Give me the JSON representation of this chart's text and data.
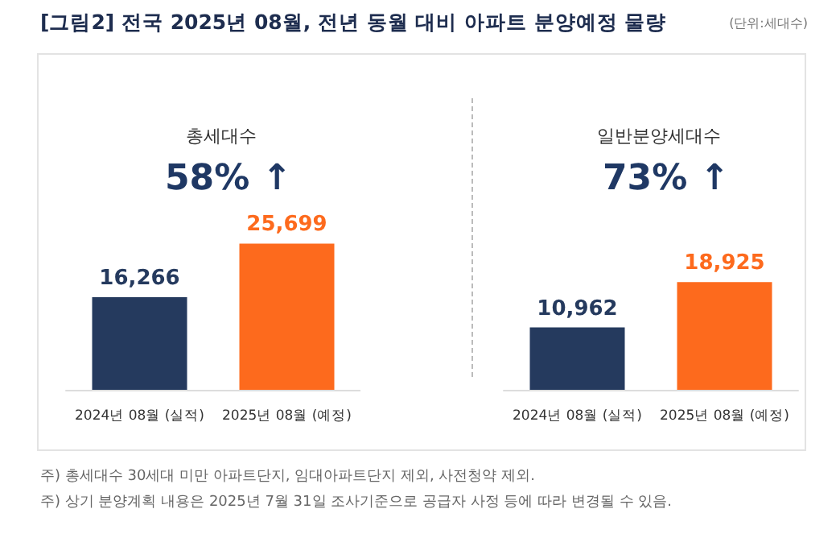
{
  "chart_data": [
    {
      "type": "bar",
      "title": "[그림2] 전국 2025년 08월, 전년 동월 대비 아파트 분양예정 물량",
      "subtitle": "총세대수",
      "categories": [
        "2024년 08월 (실적)",
        "2025년 08월 (예정)"
      ],
      "values": [
        16266,
        25699
      ],
      "colors": [
        "#253a5e",
        "#fd6a1d"
      ],
      "value_labels": [
        "16,266",
        "25,699"
      ],
      "tick_labels": "x",
      "annotations": [
        "58% ↑",
        "(단위:세대수)",
        "주) 총세대수 30세대 미만 아파트단지, 임대아파트단지 제외, 사전청약 제외.",
        "주) 상기 분양계획 내용은 2025년 7월 31일 조사기준으로 공급자 사정 등에 따라 변경될 수 있음."
      ]
    },
    {
      "type": "bar",
      "subtitle": "일반분양세대수",
      "categories": [
        "2024년 08월 (실적)",
        "2025년 08월 (예정)"
      ],
      "values": [
        10962,
        18925
      ],
      "colors": [
        "#253a5e",
        "#fd6a1d"
      ],
      "value_labels": [
        "10,962",
        "18,925"
      ],
      "tick_labels": "x",
      "annotations": [
        "73% ↑"
      ]
    }
  ]
}
